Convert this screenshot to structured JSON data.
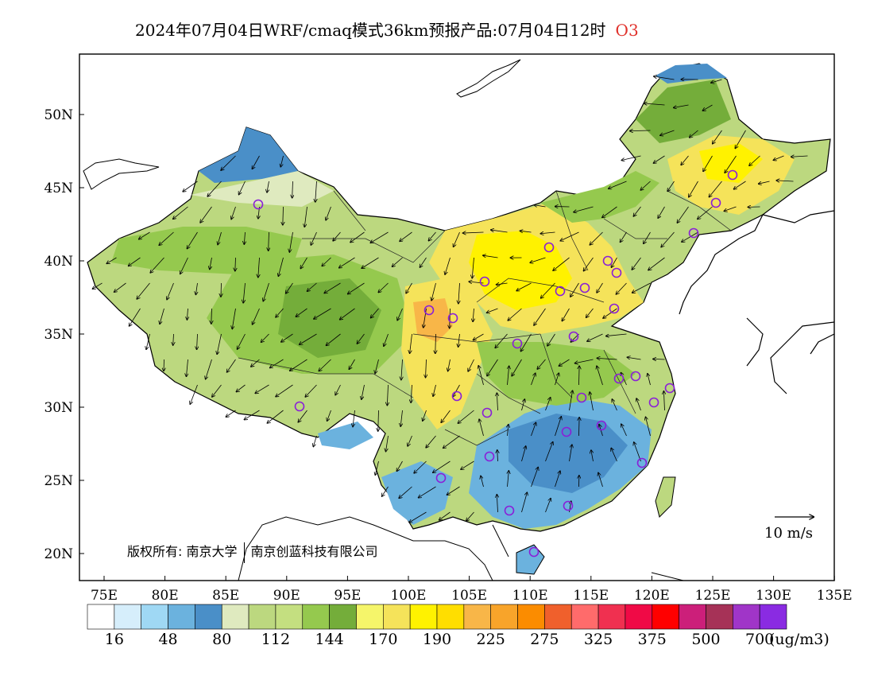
{
  "title": {
    "main": "2024年07月04日WRF/cmaq模式36km预报产品:07月04日12时",
    "species": "O3"
  },
  "map": {
    "lat_ticks": [
      "50N",
      "45N",
      "40N",
      "35N",
      "30N",
      "25N",
      "20N"
    ],
    "lon_ticks": [
      "75E",
      "80E",
      "85E",
      "90E",
      "95E",
      "100E",
      "105E",
      "110E",
      "115E",
      "120E",
      "125E",
      "130E",
      "135E"
    ],
    "copyright": {
      "prefix": "版权所有:",
      "org1": "南京大学",
      "org2": "南京创蓝科技有限公司"
    },
    "wind_reference": "10 m/s",
    "site_marker_color": "#8a1fd8"
  },
  "colorbar": {
    "colors": [
      "#ffffff",
      "#d6eefb",
      "#9fd8f4",
      "#6bb2de",
      "#4a8fc8",
      "#dfeabf",
      "#bcd87f",
      "#c4df80",
      "#95c94e",
      "#74ad3a",
      "#f5f56a",
      "#f5e35a",
      "#fff200",
      "#ffde00",
      "#f8b648",
      "#f8a42a",
      "#fb8c00",
      "#f0602c",
      "#ff6b6b",
      "#f03050",
      "#f00a46",
      "#ff0000",
      "#cc1f7a",
      "#a63257",
      "#a035c8",
      "#8a2be2"
    ],
    "labels": [
      "16",
      "48",
      "80",
      "112",
      "144",
      "170",
      "190",
      "225",
      "275",
      "325",
      "375",
      "500",
      "700"
    ],
    "unit": "(ug/m3)"
  }
}
